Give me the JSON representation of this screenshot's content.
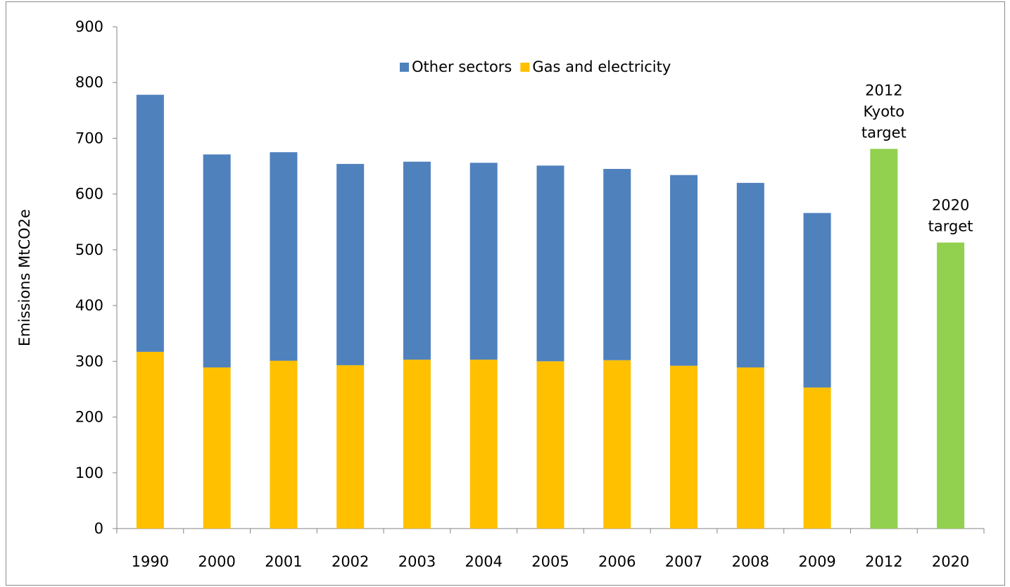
{
  "chart_data": {
    "type": "bar",
    "stacked": true,
    "categories": [
      "1990",
      "2000",
      "2001",
      "2002",
      "2003",
      "2004",
      "2005",
      "2006",
      "2007",
      "2008",
      "2009",
      "2012",
      "2020"
    ],
    "series": [
      {
        "name": "Gas and electricity",
        "color": "#FFC000",
        "values": [
          317,
          289,
          301,
          293,
          303,
          303,
          300,
          302,
          292,
          289,
          253,
          null,
          null
        ]
      },
      {
        "name": "Other sectors",
        "color": "#4F81BD",
        "values": [
          461,
          382,
          374,
          361,
          355,
          353,
          351,
          343,
          342,
          331,
          313,
          null,
          null
        ]
      },
      {
        "color": "#92D050",
        "values": [
          null,
          null,
          null,
          null,
          null,
          null,
          null,
          null,
          null,
          null,
          null,
          681,
          513
        ]
      }
    ],
    "legend": [
      "Other sectors",
      "Gas and electricity"
    ],
    "legend_position": "top-center",
    "annotations": [
      {
        "category": "2012",
        "lines": [
          "2012",
          "Kyoto",
          "target"
        ]
      },
      {
        "category": "2020",
        "lines": [
          "2020",
          "target"
        ]
      }
    ],
    "xlabel": "",
    "ylabel": "Emissions MtCO2e",
    "ylim": [
      0,
      900
    ],
    "yticks": [
      0,
      100,
      200,
      300,
      400,
      500,
      600,
      700,
      800,
      900
    ],
    "grid": false
  }
}
